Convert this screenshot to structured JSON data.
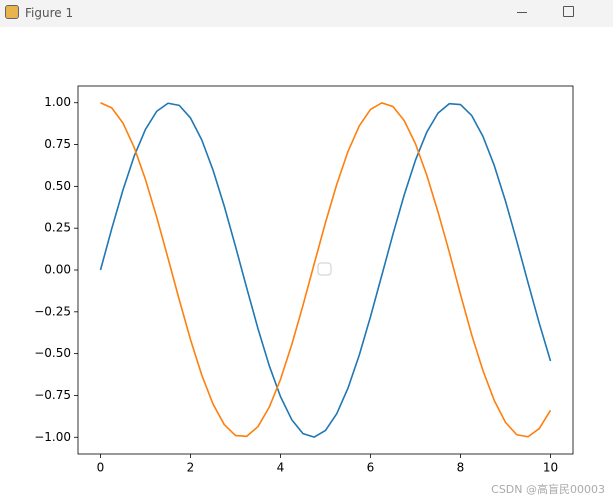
{
  "window": {
    "title": "Figure 1"
  },
  "watermark": "CSDN @高盲民00003",
  "chart_data": {
    "type": "line",
    "x": [
      0,
      0.25,
      0.5,
      0.75,
      1,
      1.25,
      1.5,
      1.75,
      2,
      2.25,
      2.5,
      2.75,
      3,
      3.25,
      3.5,
      3.75,
      4,
      4.25,
      4.5,
      4.75,
      5,
      5.25,
      5.5,
      5.75,
      6,
      6.25,
      6.5,
      6.75,
      7,
      7.25,
      7.5,
      7.75,
      8,
      8.25,
      8.5,
      8.75,
      9,
      9.25,
      9.5,
      9.75,
      10
    ],
    "series": [
      {
        "color": "#1f77b4",
        "values": [
          0,
          0.247,
          0.479,
          0.682,
          0.841,
          0.949,
          0.997,
          0.984,
          0.909,
          0.778,
          0.598,
          0.382,
          0.141,
          -0.108,
          -0.351,
          -0.572,
          -0.757,
          -0.895,
          -0.978,
          -0.999,
          -0.959,
          -0.859,
          -0.706,
          -0.509,
          -0.279,
          -0.033,
          0.215,
          0.45,
          0.657,
          0.824,
          0.938,
          0.994,
          0.989,
          0.923,
          0.798,
          0.625,
          0.412,
          0.173,
          -0.075,
          -0.318,
          -0.544
        ]
      },
      {
        "color": "#ff7f0e",
        "values": [
          1,
          0.969,
          0.878,
          0.732,
          0.54,
          0.315,
          0.071,
          -0.178,
          -0.416,
          -0.628,
          -0.801,
          -0.924,
          -0.99,
          -0.994,
          -0.936,
          -0.82,
          -0.654,
          -0.446,
          -0.211,
          0.038,
          0.284,
          0.512,
          0.709,
          0.861,
          0.96,
          0.999,
          0.977,
          0.893,
          0.754,
          0.567,
          0.347,
          0.108,
          -0.146,
          -0.389,
          -0.602,
          -0.78,
          -0.911,
          -0.985,
          -0.997,
          -0.948,
          -0.839
        ]
      }
    ],
    "xlim": [
      -0.5,
      10.5
    ],
    "ylim": [
      -1.1,
      1.1
    ],
    "xticks": [
      0,
      2,
      4,
      6,
      8,
      10
    ],
    "yticks": [
      {
        "value": 1,
        "label": "1.00"
      },
      {
        "value": 0.75,
        "label": "0.75"
      },
      {
        "value": 0.5,
        "label": "0.50"
      },
      {
        "value": 0.25,
        "label": "0.25"
      },
      {
        "value": 0,
        "label": "0.00"
      },
      {
        "value": -0.25,
        "label": "−0.25"
      },
      {
        "value": -0.5,
        "label": "−0.50"
      },
      {
        "value": -0.75,
        "label": "−0.75"
      },
      {
        "value": -1,
        "label": "−1.00"
      }
    ]
  }
}
